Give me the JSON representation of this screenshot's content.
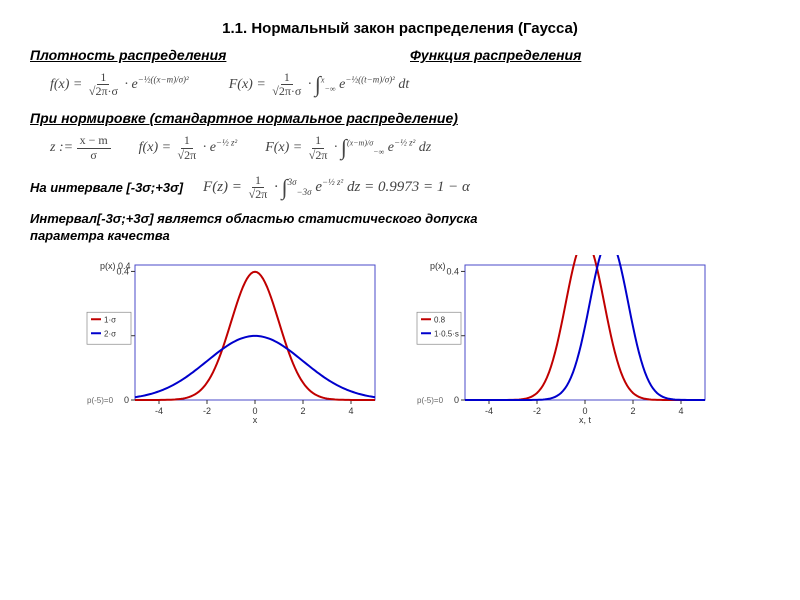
{
  "title": "1.1. Нормальный закон распределения (Гаусса)",
  "headings": {
    "density": "Плотность распределения",
    "cdf": "Функция распределения",
    "normalized": "При нормировке  (стандартное нормальное распределение)",
    "interval_label": "На интервале [-3σ;+3σ]",
    "note_line1": "Интервал[-3σ;+3σ]  является областью статистического допуска",
    "note_line2": "параметра качества"
  },
  "formulas": {
    "density": "f(x) = (1 / √(2π)·σ) · e^{ -½((x−m)/σ)² }",
    "cdf": "F(x) = (1 / √(2π)·σ) · ∫_{−∞}^{x} e^{ -½((t−m)/σ)² } dt",
    "z_def": "z := (x − m) / σ",
    "density_std": "f(x) = (1 / √(2π)) · e^{ -½ z² }",
    "cdf_std": "F(x) = (1 / √(2π)) · ∫_{−∞}^{(x−m)/σ} e^{ -½ z² } dz",
    "three_sigma": "F(z) = (1 / √(2π)) · ∫_{−3σ}^{3σ} e^{ -½ z² } dz = 0.9973 = 1 − α"
  },
  "chart_left": {
    "type": "line",
    "title_y": "p(x) 0.4",
    "xlim": [
      -5,
      5
    ],
    "ylim": [
      0,
      0.42
    ],
    "xticks": [
      -4,
      -2,
      0,
      2,
      4
    ],
    "yticks": [
      0,
      0.2,
      0.4
    ],
    "xlabel": "x",
    "series": [
      {
        "name": "1·σ",
        "color": "#c00000",
        "mu": 0,
        "sigma": 1,
        "line_width": 2
      },
      {
        "name": "2·σ",
        "color": "#0000cc",
        "mu": 0,
        "sigma": 2,
        "line_width": 2
      }
    ],
    "legend_border": "#888888",
    "axis_color": "#333333",
    "frame_color": "#4a4ac8",
    "background_color": "#ffffff",
    "font_size": 9
  },
  "chart_right": {
    "type": "line",
    "title_y": "p(x)",
    "xlim": [
      -5,
      5
    ],
    "ylim": [
      0,
      0.42
    ],
    "xticks": [
      -4,
      -2,
      0,
      2,
      4
    ],
    "yticks": [
      0,
      0.2,
      0.4
    ],
    "xlabel": "x, t",
    "series": [
      {
        "name": "0.8",
        "color": "#c00000",
        "mu": 0,
        "sigma": 0.8,
        "line_width": 2
      },
      {
        "name": "1·0.5·s",
        "color": "#0000cc",
        "mu": 1.0,
        "sigma": 0.8,
        "line_width": 2
      }
    ],
    "legend_border": "#888888",
    "axis_color": "#333333",
    "frame_color": "#4a4ac8",
    "background_color": "#ffffff",
    "font_size": 9
  }
}
